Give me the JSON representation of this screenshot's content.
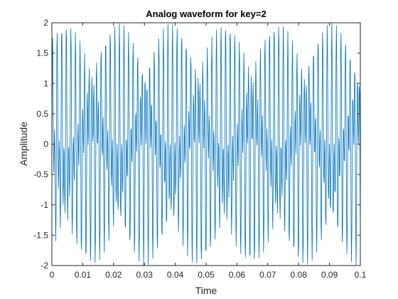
{
  "chart_data": {
    "type": "line",
    "title": "Analog waveform for key=2",
    "xlabel": "Time",
    "ylabel": "Amplitude",
    "xlim": [
      0,
      0.1
    ],
    "ylim": [
      -2,
      2
    ],
    "xticks": [
      "0",
      "0.01",
      "0.02",
      "0.03",
      "0.04",
      "0.05",
      "0.06",
      "0.07",
      "0.08",
      "0.09",
      "0.1"
    ],
    "yticks": [
      "-2",
      "-1.5",
      "-1",
      "-0.5",
      "0",
      "0.5",
      "1",
      "1.5",
      "2"
    ],
    "grid": false,
    "series": [
      {
        "color": "#0072bd",
        "function": "sin(2*pi*697*t) + sin(2*pi*1336*t)",
        "t_start": 0,
        "t_end": 0.1,
        "sample_rate": 8000
      }
    ]
  },
  "colors": {
    "line": "#0072bd",
    "axes": "#262626",
    "background": "#ffffff"
  }
}
